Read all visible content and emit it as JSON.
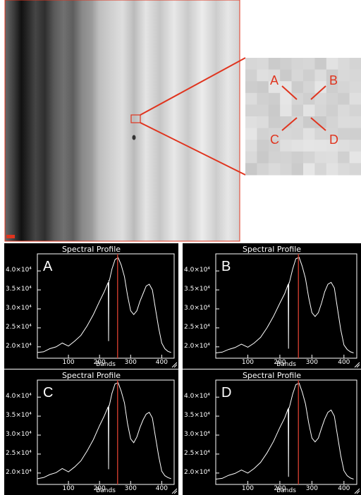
{
  "zoom_labels": [
    "A",
    "B",
    "C",
    "D"
  ],
  "chart_data": [
    {
      "type": "line",
      "panel_label": "A",
      "title": "Spectral Profile",
      "xlabel": "Bands",
      "ylabel": "",
      "xlim": [
        0,
        440
      ],
      "ylim": [
        17000,
        44500
      ],
      "x_ticks": [
        100,
        200,
        300,
        400
      ],
      "y_ticks": [
        20000,
        25000,
        30000,
        35000,
        40000
      ],
      "y_tick_labels": [
        "2.0×10⁴",
        "2.5×10⁴",
        "3.0×10⁴",
        "3.5×10⁴",
        "4.0×10⁴"
      ],
      "series": [
        {
          "x": [
            0,
            20,
            40,
            60,
            80,
            100,
            120,
            140,
            160,
            180,
            200,
            215,
            228,
            229,
            230,
            231,
            232,
            240,
            250,
            260,
            270,
            280,
            290,
            300,
            310,
            320,
            330,
            340,
            350,
            360,
            370,
            380,
            390,
            400,
            410,
            420,
            430
          ],
          "y": [
            18500,
            18700,
            19500,
            20000,
            21000,
            20200,
            21500,
            23000,
            25500,
            28500,
            32000,
            34500,
            37000,
            21500,
            37500,
            37500,
            37600,
            40500,
            43000,
            43500,
            41500,
            38500,
            33500,
            29500,
            28500,
            29500,
            32000,
            34000,
            36000,
            36500,
            35000,
            30000,
            25000,
            21000,
            19500,
            18800,
            18500
          ]
        }
      ],
      "vertical_marker_band": 258,
      "marker_color": "#c0392b"
    },
    {
      "type": "line",
      "panel_label": "B",
      "title": "Spectral Profile",
      "xlabel": "Bands",
      "ylabel": "",
      "xlim": [
        0,
        440
      ],
      "ylim": [
        17000,
        44500
      ],
      "x_ticks": [
        100,
        200,
        300,
        400
      ],
      "y_ticks": [
        20000,
        25000,
        30000,
        35000,
        40000
      ],
      "y_tick_labels": [
        "2.0×10⁴",
        "2.5×10⁴",
        "3.0×10⁴",
        "3.5×10⁴",
        "4.0×10⁴"
      ],
      "series": [
        {
          "x": [
            0,
            20,
            40,
            60,
            80,
            100,
            120,
            140,
            160,
            180,
            200,
            215,
            226,
            227,
            228,
            229,
            230,
            240,
            250,
            260,
            270,
            280,
            290,
            300,
            310,
            320,
            330,
            340,
            350,
            360,
            370,
            380,
            390,
            400,
            410,
            420,
            430
          ],
          "y": [
            18400,
            18600,
            19300,
            19800,
            20700,
            19900,
            21000,
            22500,
            25000,
            28000,
            31500,
            34000,
            36500,
            19500,
            36800,
            36800,
            37000,
            40500,
            43200,
            43600,
            41200,
            38000,
            33000,
            29000,
            28000,
            29000,
            31500,
            34500,
            36500,
            37000,
            35500,
            30000,
            24500,
            20500,
            19300,
            18700,
            18400
          ]
        }
      ],
      "vertical_marker_band": 258,
      "marker_color": "#c0392b"
    },
    {
      "type": "line",
      "panel_label": "C",
      "title": "Spectral Profile",
      "xlabel": "Bands",
      "ylabel": "",
      "xlim": [
        0,
        440
      ],
      "ylim": [
        17000,
        44500
      ],
      "x_ticks": [
        100,
        200,
        300,
        400
      ],
      "y_ticks": [
        20000,
        25000,
        30000,
        35000,
        40000
      ],
      "y_tick_labels": [
        "2.0×10⁴",
        "2.5×10⁴",
        "3.0×10⁴",
        "3.5×10⁴",
        "4.0×10⁴"
      ],
      "series": [
        {
          "x": [
            0,
            20,
            40,
            60,
            80,
            100,
            120,
            140,
            160,
            180,
            200,
            215,
            228,
            229,
            230,
            231,
            232,
            240,
            250,
            260,
            270,
            280,
            290,
            300,
            310,
            320,
            330,
            340,
            350,
            360,
            370,
            380,
            390,
            400,
            410,
            420,
            430
          ],
          "y": [
            18500,
            18800,
            19600,
            20100,
            21200,
            20300,
            21600,
            23200,
            25800,
            28800,
            32500,
            35000,
            37500,
            21000,
            37800,
            37800,
            38000,
            41000,
            43500,
            43800,
            41500,
            38500,
            33000,
            29000,
            28000,
            29500,
            32000,
            34000,
            35500,
            36000,
            34500,
            29500,
            24500,
            20500,
            19300,
            18800,
            18500
          ]
        }
      ],
      "vertical_marker_band": 258,
      "marker_color": "#c0392b"
    },
    {
      "type": "line",
      "panel_label": "D",
      "title": "Spectral Profile",
      "xlabel": "Bands",
      "ylabel": "",
      "xlim": [
        0,
        440
      ],
      "ylim": [
        17000,
        44500
      ],
      "x_ticks": [
        100,
        200,
        300,
        400
      ],
      "y_ticks": [
        20000,
        25000,
        30000,
        35000,
        40000
      ],
      "y_tick_labels": [
        "2.0×10⁴",
        "2.5×10⁴",
        "3.0×10⁴",
        "3.5×10⁴",
        "4.0×10⁴"
      ],
      "series": [
        {
          "x": [
            0,
            20,
            40,
            60,
            80,
            100,
            120,
            140,
            160,
            180,
            200,
            215,
            226,
            227,
            228,
            229,
            230,
            240,
            250,
            260,
            270,
            280,
            290,
            300,
            310,
            320,
            330,
            340,
            350,
            360,
            370,
            380,
            390,
            400,
            410,
            420,
            430
          ],
          "y": [
            18400,
            18600,
            19400,
            19900,
            20800,
            20000,
            21200,
            22800,
            25300,
            28300,
            32000,
            34500,
            37000,
            19000,
            37200,
            37200,
            37400,
            40800,
            43300,
            43700,
            41300,
            38200,
            33200,
            29200,
            28200,
            29200,
            31800,
            34200,
            36000,
            36600,
            35000,
            29800,
            24600,
            20600,
            19300,
            18700,
            18400
          ]
        }
      ],
      "vertical_marker_band": 258,
      "marker_color": "#c0392b"
    }
  ],
  "colors": {
    "annotation": "#e0341e",
    "plot_background": "#000000",
    "plot_line": "#ffffff",
    "marker_line": "#c0392b"
  }
}
